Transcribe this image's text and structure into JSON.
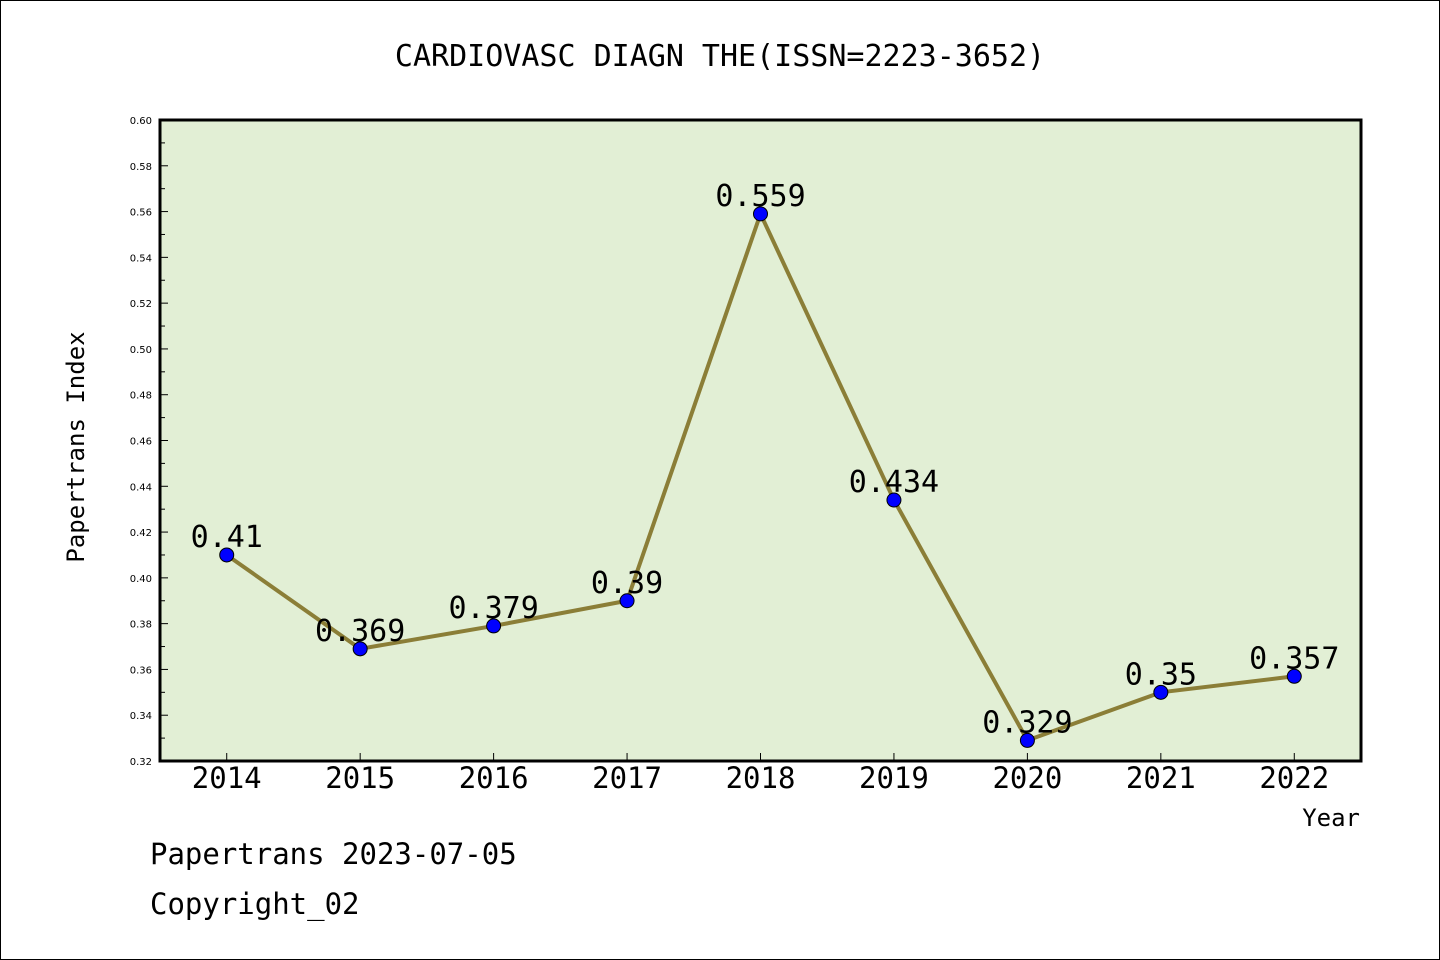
{
  "chart_data": {
    "type": "line",
    "title": "CARDIOVASC DIAGN THE(ISSN=2223-3652)",
    "xlabel": "Year",
    "ylabel": "Papertrans Index",
    "categories": [
      "2014",
      "2015",
      "2016",
      "2017",
      "2018",
      "2019",
      "2020",
      "2021",
      "2022"
    ],
    "values": [
      0.41,
      0.369,
      0.379,
      0.39,
      0.559,
      0.434,
      0.329,
      0.35,
      0.357
    ],
    "data_labels": [
      "0.41",
      "0.369",
      "0.379",
      "0.39",
      "0.559",
      "0.434",
      "0.329",
      "0.35",
      "0.357"
    ],
    "ylim": [
      0.32,
      0.6
    ],
    "yticks": [
      "0.32",
      "0.34",
      "0.36",
      "0.38",
      "0.40",
      "0.42",
      "0.44",
      "0.46",
      "0.48",
      "0.50",
      "0.52",
      "0.54",
      "0.56",
      "0.58",
      "0.60"
    ],
    "grid": false,
    "legend": "none",
    "colors": {
      "plot_bg": "#e2efd5",
      "line": "#8b7e37",
      "marker": "#0000ff"
    }
  },
  "footer": {
    "line1": "Papertrans 2023-07-05",
    "line2": "Copyright_02"
  }
}
